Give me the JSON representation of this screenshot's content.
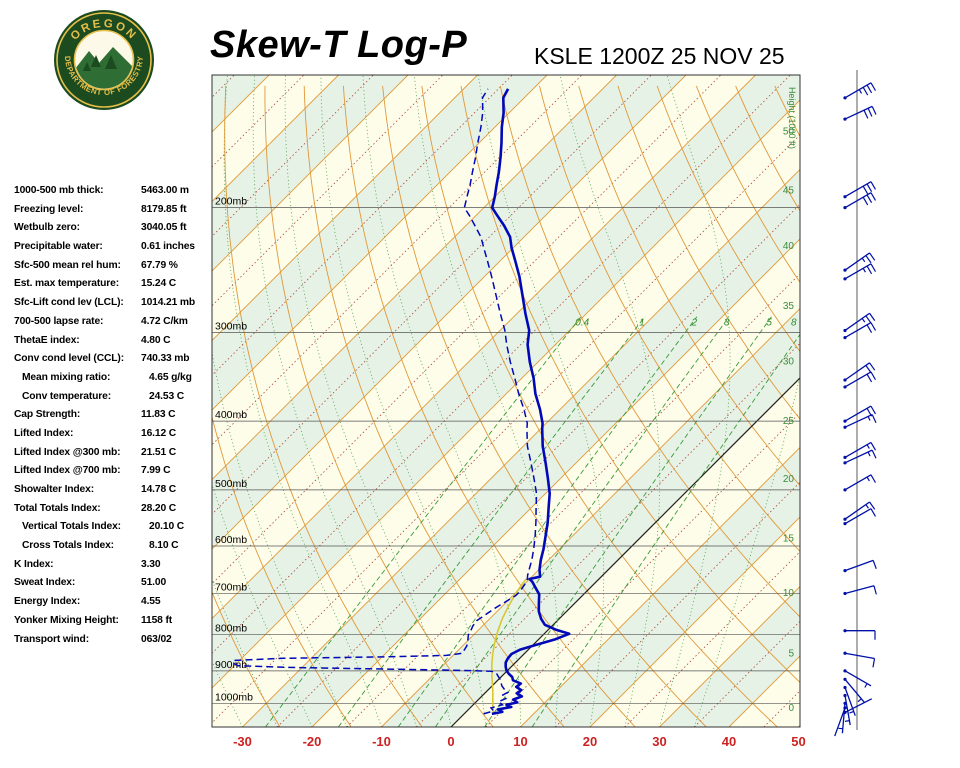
{
  "header": {
    "title": "Skew-T Log-P",
    "station": "KSLE 1200Z 25 NOV 25",
    "logo": {
      "top": "OREGON",
      "bottom": "DEPARTMENT OF FORESTRY"
    }
  },
  "indices": [
    {
      "label": "1000-500 mb thick:",
      "value": "5463.00 m",
      "indent": false
    },
    {
      "label": "Freezing level:",
      "value": "8179.85 ft",
      "indent": false
    },
    {
      "label": "Wetbulb zero:",
      "value": "3040.05 ft",
      "indent": false
    },
    {
      "label": "Precipitable water:",
      "value": "0.61 inches",
      "indent": false
    },
    {
      "label": "Sfc-500 mean rel hum:",
      "value": "67.79 %",
      "indent": false
    },
    {
      "label": "Est. max temperature:",
      "value": "15.24 C",
      "indent": false
    },
    {
      "label": "Sfc-Lift cond lev (LCL):",
      "value": "1014.21 mb",
      "indent": false
    },
    {
      "label": "700-500 lapse rate:",
      "value": "4.72 C/km",
      "indent": false
    },
    {
      "label": "ThetaE index:",
      "value": "4.80 C",
      "indent": false
    },
    {
      "label": "Conv cond level (CCL):",
      "value": "740.33 mb",
      "indent": false
    },
    {
      "label": "Mean mixing ratio:",
      "value": "4.65 g/kg",
      "indent": true
    },
    {
      "label": "Conv temperature:",
      "value": "24.53 C",
      "indent": true
    },
    {
      "label": "Cap Strength:",
      "value": "11.83 C",
      "indent": false
    },
    {
      "label": "Lifted Index:",
      "value": "16.12 C",
      "indent": false
    },
    {
      "label": "Lifted Index @300 mb:",
      "value": "21.51 C",
      "indent": false
    },
    {
      "label": "Lifted Index @700 mb:",
      "value": "7.99 C",
      "indent": false
    },
    {
      "label": "Showalter Index:",
      "value": "14.78 C",
      "indent": false
    },
    {
      "label": "Total Totals Index:",
      "value": "28.20 C",
      "indent": false
    },
    {
      "label": "Vertical Totals Index:",
      "value": "20.10 C",
      "indent": true
    },
    {
      "label": "Cross Totals Index:",
      "value": "8.10 C",
      "indent": true
    },
    {
      "label": "K Index:",
      "value": "3.30",
      "indent": false
    },
    {
      "label": "Sweat Index:",
      "value": "51.00",
      "indent": false
    },
    {
      "label": "Energy Index:",
      "value": "4.55",
      "indent": false
    },
    {
      "label": "Yonker Mixing Height:",
      "value": "1158 ft",
      "indent": false
    },
    {
      "label": "Transport wind:",
      "value": "063/02",
      "indent": false
    }
  ],
  "chart_data": {
    "type": "line",
    "title": "Skew-T Log-P sounding",
    "station": "KSLE 1200Z 25 NOV 25",
    "x_axis": {
      "ticks": [
        -30,
        -20,
        -10,
        0,
        10,
        20,
        30,
        40,
        50
      ],
      "unit": "C"
    },
    "pressure_axis": {
      "labels": [
        200,
        300,
        400,
        500,
        600,
        700,
        800,
        900,
        1000
      ],
      "unit": "mb",
      "range": [
        130,
        1080
      ]
    },
    "height_axis": {
      "title": "Height (1000 ft)",
      "labels": [
        {
          "h": "50",
          "p": 156
        },
        {
          "h": "45",
          "p": 189
        },
        {
          "h": "40",
          "p": 226
        },
        {
          "h": "35",
          "p": 275
        },
        {
          "h": "30",
          "p": 329
        },
        {
          "h": "25",
          "p": 399
        },
        {
          "h": "20",
          "p": 482
        },
        {
          "h": "15",
          "p": 585
        },
        {
          "h": "10",
          "p": 698
        },
        {
          "h": "5",
          "p": 849
        },
        {
          "h": "0",
          "p": 1013
        }
      ]
    },
    "mixing_ratio_values": [
      0.4,
      1,
      2,
      3,
      5,
      8
    ],
    "isotherm_step": 10,
    "skew_degrees": 45,
    "series": [
      {
        "name": "temperature",
        "points": [
          [
            1035,
            4.0
          ],
          [
            1028,
            5.2
          ],
          [
            1020,
            4.2
          ],
          [
            1012,
            5.8
          ],
          [
            1005,
            4.8
          ],
          [
            997,
            6.0
          ],
          [
            988,
            5.0
          ],
          [
            978,
            5.8
          ],
          [
            968,
            4.6
          ],
          [
            958,
            4.8
          ],
          [
            948,
            3.6
          ],
          [
            938,
            3.8
          ],
          [
            928,
            2.2
          ],
          [
            918,
            1.6
          ],
          [
            908,
            0.6
          ],
          [
            898,
            -0.2
          ],
          [
            888,
            -0.8
          ],
          [
            876,
            -1.4
          ],
          [
            864,
            -1.7
          ],
          [
            852,
            -1.8
          ],
          [
            840,
            -1.2
          ],
          [
            826,
            0.6
          ],
          [
            812,
            2.4
          ],
          [
            798,
            3.6
          ],
          [
            788,
            1.2
          ],
          [
            775,
            -1.2
          ],
          [
            760,
            -2.6
          ],
          [
            742,
            -4.0
          ],
          [
            722,
            -5.2
          ],
          [
            702,
            -6.4
          ],
          [
            686,
            -8.0
          ],
          [
            674,
            -9.2
          ],
          [
            668,
            -10.0
          ],
          [
            663,
            -8.8
          ],
          [
            648,
            -9.9
          ],
          [
            628,
            -11.1
          ],
          [
            606,
            -12.3
          ],
          [
            582,
            -13.8
          ],
          [
            556,
            -15.5
          ],
          [
            530,
            -17.5
          ],
          [
            506,
            -19.4
          ],
          [
            482,
            -21.8
          ],
          [
            458,
            -24.4
          ],
          [
            434,
            -27.2
          ],
          [
            410,
            -29.8
          ],
          [
            403,
            -30.5
          ],
          [
            385,
            -32.9
          ],
          [
            366,
            -35.8
          ],
          [
            348,
            -38.3
          ],
          [
            330,
            -41.2
          ],
          [
            312,
            -44.0
          ],
          [
            298,
            -45.8
          ],
          [
            282,
            -48.8
          ],
          [
            266,
            -51.8
          ],
          [
            250,
            -55.0
          ],
          [
            237,
            -58.0
          ],
          [
            228,
            -60.2
          ],
          [
            220,
            -62.0
          ],
          [
            212,
            -64.5
          ],
          [
            205,
            -67.0
          ],
          [
            200,
            -68.8
          ],
          [
            193,
            -70.0
          ],
          [
            186,
            -71.4
          ],
          [
            178,
            -73.0
          ],
          [
            170,
            -74.8
          ],
          [
            162,
            -76.8
          ],
          [
            154,
            -79.0
          ],
          [
            147,
            -80.8
          ],
          [
            140,
            -83.0
          ],
          [
            136,
            -83.6
          ]
        ]
      },
      {
        "name": "dewpoint",
        "points": [
          [
            1035,
            2.8
          ],
          [
            1025,
            3.8
          ],
          [
            1015,
            3.0
          ],
          [
            1005,
            4.2
          ],
          [
            995,
            3.2
          ],
          [
            985,
            3.8
          ],
          [
            975,
            2.8
          ],
          [
            965,
            3.2
          ],
          [
            955,
            2.2
          ],
          [
            945,
            1.4
          ],
          [
            935,
            0.8
          ],
          [
            925,
            0.2
          ],
          [
            915,
            -0.6
          ],
          [
            907,
            -1.2
          ],
          [
            901,
            -2.2
          ],
          [
            898,
            -8.0
          ],
          [
            894,
            -20.0
          ],
          [
            890,
            -32.0
          ],
          [
            885,
            -39.5
          ],
          [
            878,
            -40.5
          ],
          [
            870,
            -40.8
          ],
          [
            864,
            -34.0
          ],
          [
            860,
            -20.0
          ],
          [
            856,
            -11.0
          ],
          [
            850,
            -9.0
          ],
          [
            840,
            -9.2
          ],
          [
            830,
            -9.4
          ],
          [
            820,
            -9.8
          ],
          [
            810,
            -10.3
          ],
          [
            800,
            -10.8
          ],
          [
            790,
            -11.0
          ],
          [
            778,
            -11.4
          ],
          [
            765,
            -11.6
          ],
          [
            750,
            -11.2
          ],
          [
            735,
            -10.8
          ],
          [
            720,
            -10.2
          ],
          [
            705,
            -9.6
          ],
          [
            695,
            -9.6
          ],
          [
            685,
            -9.8
          ],
          [
            676,
            -10.0
          ],
          [
            668,
            -10.3
          ],
          [
            660,
            -10.8
          ],
          [
            648,
            -11.4
          ],
          [
            628,
            -12.4
          ],
          [
            606,
            -13.7
          ],
          [
            582,
            -15.3
          ],
          [
            556,
            -17.2
          ],
          [
            530,
            -19.3
          ],
          [
            506,
            -21.3
          ],
          [
            482,
            -23.8
          ],
          [
            458,
            -26.5
          ],
          [
            434,
            -29.4
          ],
          [
            410,
            -32.0
          ],
          [
            403,
            -32.7
          ],
          [
            385,
            -35.2
          ],
          [
            366,
            -38.2
          ],
          [
            348,
            -41.0
          ],
          [
            330,
            -44.0
          ],
          [
            312,
            -47.0
          ],
          [
            298,
            -49.3
          ],
          [
            282,
            -52.4
          ],
          [
            266,
            -55.6
          ],
          [
            250,
            -59.0
          ],
          [
            237,
            -62.0
          ],
          [
            228,
            -64.2
          ],
          [
            220,
            -66.2
          ],
          [
            212,
            -68.7
          ],
          [
            205,
            -71.0
          ],
          [
            200,
            -72.8
          ],
          [
            193,
            -74.0
          ],
          [
            186,
            -75.2
          ],
          [
            178,
            -76.8
          ],
          [
            170,
            -78.4
          ],
          [
            162,
            -80.2
          ],
          [
            154,
            -82.0
          ],
          [
            147,
            -83.8
          ],
          [
            140,
            -86.0
          ],
          [
            136,
            -86.5
          ]
        ]
      },
      {
        "name": "parcel",
        "points": [
          [
            1035,
            4.2
          ],
          [
            1000,
            2.6
          ],
          [
            960,
            0.8
          ],
          [
            920,
            -1.2
          ],
          [
            880,
            -3.2
          ],
          [
            850,
            -4.6
          ],
          [
            820,
            -5.9
          ],
          [
            790,
            -7.1
          ],
          [
            760,
            -8.2
          ],
          [
            730,
            -9.1
          ],
          [
            700,
            -9.9
          ],
          [
            680,
            -10.3
          ],
          [
            667,
            -10.5
          ]
        ]
      }
    ],
    "winds": [
      [
        140,
        60,
        35
      ],
      [
        150,
        65,
        30
      ],
      [
        193,
        60,
        30
      ],
      [
        200,
        60,
        30
      ],
      [
        245,
        55,
        25
      ],
      [
        252,
        60,
        25
      ],
      [
        298,
        55,
        25
      ],
      [
        305,
        60,
        20
      ],
      [
        350,
        55,
        20
      ],
      [
        358,
        60,
        20
      ],
      [
        400,
        60,
        20
      ],
      [
        408,
        65,
        15
      ],
      [
        450,
        60,
        15
      ],
      [
        458,
        65,
        15
      ],
      [
        500,
        60,
        15
      ],
      [
        550,
        55,
        15
      ],
      [
        558,
        60,
        10
      ],
      [
        650,
        70,
        10
      ],
      [
        700,
        75,
        10
      ],
      [
        790,
        90,
        10
      ],
      [
        850,
        100,
        10
      ],
      [
        900,
        120,
        5
      ],
      [
        925,
        140,
        5
      ],
      [
        950,
        160,
        5
      ],
      [
        975,
        170,
        5
      ],
      [
        1000,
        185,
        5
      ],
      [
        1015,
        200,
        3
      ],
      [
        1030,
        63,
        2
      ]
    ],
    "colors": {
      "band_cream": "#fdfdea",
      "band_green": "#e6f2e6",
      "isotherm": "#e09838",
      "isotherm_minor": "#b04838",
      "adiabat": "#e09838",
      "moist": "#4a9e4a",
      "mixing": "#3a9a3a",
      "mixing_label": "#2e8b2e",
      "zero_isotherm": "#222222",
      "grid": "#555555",
      "pressure_label": "#000000",
      "height_label": "#3d8b3d",
      "x_label": "#cc2222",
      "temperature": "#0008b8",
      "dewpoint": "#0008b8",
      "parcel": "#d8c832",
      "wind": "#0010a8",
      "border": "#333333"
    }
  }
}
